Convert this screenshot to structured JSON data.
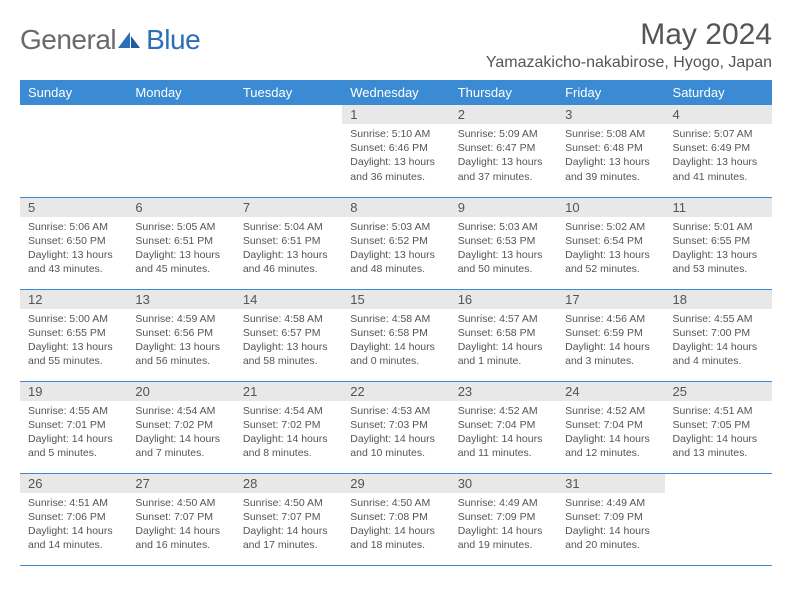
{
  "brand": {
    "general": "General",
    "blue": "Blue"
  },
  "title": "May 2024",
  "location": "Yamazakicho-nakabirose, Hyogo, Japan",
  "colors": {
    "header_bg": "#3b8bd4",
    "header_text": "#ffffff",
    "daynum_bg": "#e8e8e8",
    "text": "#555555",
    "rule": "#3b8bd4",
    "brand_gray": "#6a6a6a",
    "brand_blue": "#2b6fb8"
  },
  "weekdays": [
    "Sunday",
    "Monday",
    "Tuesday",
    "Wednesday",
    "Thursday",
    "Friday",
    "Saturday"
  ],
  "weeks": [
    [
      null,
      null,
      null,
      {
        "n": "1",
        "sr": "5:10 AM",
        "ss": "6:46 PM",
        "dl": "13 hours and 36 minutes."
      },
      {
        "n": "2",
        "sr": "5:09 AM",
        "ss": "6:47 PM",
        "dl": "13 hours and 37 minutes."
      },
      {
        "n": "3",
        "sr": "5:08 AM",
        "ss": "6:48 PM",
        "dl": "13 hours and 39 minutes."
      },
      {
        "n": "4",
        "sr": "5:07 AM",
        "ss": "6:49 PM",
        "dl": "13 hours and 41 minutes."
      }
    ],
    [
      {
        "n": "5",
        "sr": "5:06 AM",
        "ss": "6:50 PM",
        "dl": "13 hours and 43 minutes."
      },
      {
        "n": "6",
        "sr": "5:05 AM",
        "ss": "6:51 PM",
        "dl": "13 hours and 45 minutes."
      },
      {
        "n": "7",
        "sr": "5:04 AM",
        "ss": "6:51 PM",
        "dl": "13 hours and 46 minutes."
      },
      {
        "n": "8",
        "sr": "5:03 AM",
        "ss": "6:52 PM",
        "dl": "13 hours and 48 minutes."
      },
      {
        "n": "9",
        "sr": "5:03 AM",
        "ss": "6:53 PM",
        "dl": "13 hours and 50 minutes."
      },
      {
        "n": "10",
        "sr": "5:02 AM",
        "ss": "6:54 PM",
        "dl": "13 hours and 52 minutes."
      },
      {
        "n": "11",
        "sr": "5:01 AM",
        "ss": "6:55 PM",
        "dl": "13 hours and 53 minutes."
      }
    ],
    [
      {
        "n": "12",
        "sr": "5:00 AM",
        "ss": "6:55 PM",
        "dl": "13 hours and 55 minutes."
      },
      {
        "n": "13",
        "sr": "4:59 AM",
        "ss": "6:56 PM",
        "dl": "13 hours and 56 minutes."
      },
      {
        "n": "14",
        "sr": "4:58 AM",
        "ss": "6:57 PM",
        "dl": "13 hours and 58 minutes."
      },
      {
        "n": "15",
        "sr": "4:58 AM",
        "ss": "6:58 PM",
        "dl": "14 hours and 0 minutes."
      },
      {
        "n": "16",
        "sr": "4:57 AM",
        "ss": "6:58 PM",
        "dl": "14 hours and 1 minute."
      },
      {
        "n": "17",
        "sr": "4:56 AM",
        "ss": "6:59 PM",
        "dl": "14 hours and 3 minutes."
      },
      {
        "n": "18",
        "sr": "4:55 AM",
        "ss": "7:00 PM",
        "dl": "14 hours and 4 minutes."
      }
    ],
    [
      {
        "n": "19",
        "sr": "4:55 AM",
        "ss": "7:01 PM",
        "dl": "14 hours and 5 minutes."
      },
      {
        "n": "20",
        "sr": "4:54 AM",
        "ss": "7:02 PM",
        "dl": "14 hours and 7 minutes."
      },
      {
        "n": "21",
        "sr": "4:54 AM",
        "ss": "7:02 PM",
        "dl": "14 hours and 8 minutes."
      },
      {
        "n": "22",
        "sr": "4:53 AM",
        "ss": "7:03 PM",
        "dl": "14 hours and 10 minutes."
      },
      {
        "n": "23",
        "sr": "4:52 AM",
        "ss": "7:04 PM",
        "dl": "14 hours and 11 minutes."
      },
      {
        "n": "24",
        "sr": "4:52 AM",
        "ss": "7:04 PM",
        "dl": "14 hours and 12 minutes."
      },
      {
        "n": "25",
        "sr": "4:51 AM",
        "ss": "7:05 PM",
        "dl": "14 hours and 13 minutes."
      }
    ],
    [
      {
        "n": "26",
        "sr": "4:51 AM",
        "ss": "7:06 PM",
        "dl": "14 hours and 14 minutes."
      },
      {
        "n": "27",
        "sr": "4:50 AM",
        "ss": "7:07 PM",
        "dl": "14 hours and 16 minutes."
      },
      {
        "n": "28",
        "sr": "4:50 AM",
        "ss": "7:07 PM",
        "dl": "14 hours and 17 minutes."
      },
      {
        "n": "29",
        "sr": "4:50 AM",
        "ss": "7:08 PM",
        "dl": "14 hours and 18 minutes."
      },
      {
        "n": "30",
        "sr": "4:49 AM",
        "ss": "7:09 PM",
        "dl": "14 hours and 19 minutes."
      },
      {
        "n": "31",
        "sr": "4:49 AM",
        "ss": "7:09 PM",
        "dl": "14 hours and 20 minutes."
      },
      null
    ]
  ],
  "labels": {
    "sunrise": "Sunrise: ",
    "sunset": "Sunset: ",
    "daylight": "Daylight: "
  }
}
